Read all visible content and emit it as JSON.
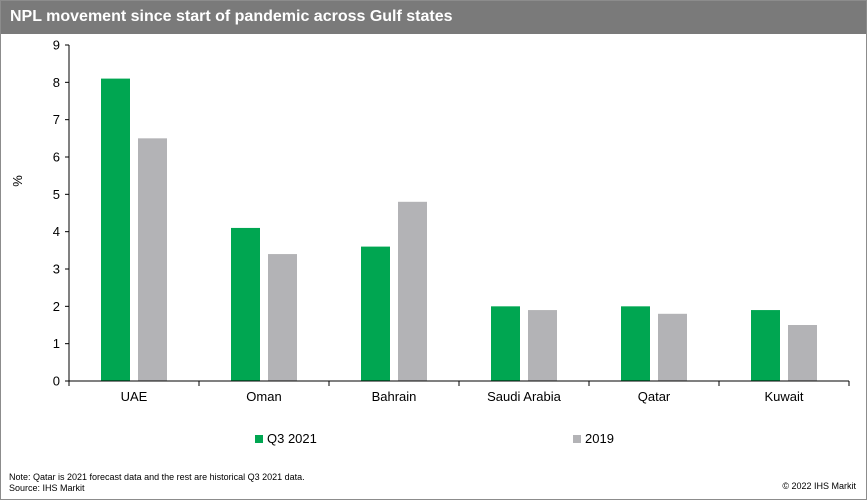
{
  "chart_data": {
    "type": "bar",
    "title": "NPL movement since start of pandemic across Gulf states",
    "ylabel": "%",
    "xlabel": "",
    "ylim": [
      0,
      9
    ],
    "yticks": [
      0,
      1,
      2,
      3,
      4,
      5,
      6,
      7,
      8,
      9
    ],
    "categories": [
      "UAE",
      "Oman",
      "Bahrain",
      "Saudi Arabia",
      "Qatar",
      "Kuwait"
    ],
    "series": [
      {
        "name": "Q3 2021",
        "color": "#00a651",
        "values": [
          8.1,
          4.1,
          3.6,
          2.0,
          2.0,
          1.9
        ]
      },
      {
        "name": "2019",
        "color": "#b3b3b6",
        "values": [
          6.5,
          3.4,
          4.8,
          1.9,
          1.8,
          1.5
        ]
      }
    ],
    "grid": false,
    "legend": "bottom"
  },
  "footer": {
    "note": "Note: Qatar is 2021  forecast data and the rest are historical Q3 2021 data.",
    "source": "Source:  IHS Markit",
    "copyright": "© 2022  IHS Markit"
  }
}
